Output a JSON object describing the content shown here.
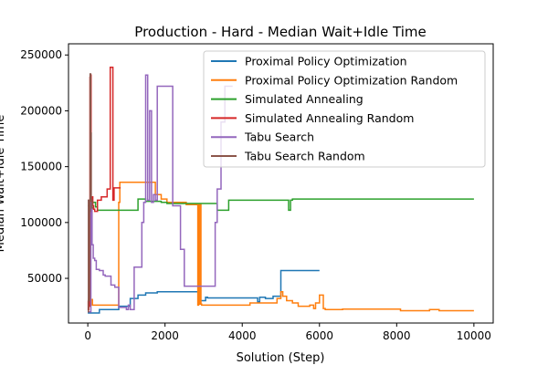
{
  "chart_data": {
    "type": "line",
    "title": "Production - Hard - Median Wait+Idle Time",
    "xlabel": "Solution (Step)",
    "ylabel": "Median Wait+Idle Time",
    "xlim": [
      -500,
      10500
    ],
    "ylim": [
      10000,
      260000
    ],
    "xticks": [
      0,
      2000,
      4000,
      6000,
      8000,
      10000
    ],
    "yticks": [
      50000,
      100000,
      150000,
      200000,
      250000
    ],
    "legend_position": "top-right",
    "series": [
      {
        "name": "Proximal Policy Optimization",
        "color": "#1f77b4",
        "x": [
          0,
          300,
          300,
          800,
          800,
          1100,
          1100,
          1300,
          1300,
          1500,
          1500,
          1800,
          1800,
          2900,
          2900,
          3050,
          3050,
          3100,
          3100,
          4400,
          4400,
          4450,
          4450,
          4600,
          4600,
          4800,
          4800,
          5000,
          5000,
          6000
        ],
        "y": [
          19000,
          19000,
          22000,
          22000,
          25000,
          25000,
          32000,
          32000,
          35000,
          35000,
          37000,
          37000,
          38000,
          38000,
          30000,
          30000,
          33000,
          33000,
          32500,
          32500,
          29000,
          29000,
          33000,
          33000,
          32000,
          32000,
          34000,
          34000,
          57000,
          57000
        ]
      },
      {
        "name": "Proximal Policy Optimization Random",
        "color": "#ff7f0e",
        "x": [
          0,
          20,
          20,
          50,
          50,
          80,
          80,
          120,
          120,
          800,
          800,
          830,
          830,
          1350,
          1350,
          1450,
          1450,
          1750,
          1750,
          1900,
          1900,
          2050,
          2050,
          2550,
          2550,
          2850,
          2850,
          2870,
          2870,
          2890,
          2890,
          2910,
          2910,
          2930,
          2930,
          2950,
          2950,
          4200,
          4200,
          4900,
          4900,
          5000,
          5000,
          5050,
          5050,
          5150,
          5150,
          5300,
          5300,
          5450,
          5450,
          5750,
          5750,
          5850,
          5850,
          5900,
          5900,
          6000,
          6000,
          6100,
          6100,
          6150,
          6150,
          6600,
          6600,
          8100,
          8100,
          8850,
          8850,
          9100,
          9100,
          10000
        ],
        "y": [
          27000,
          27000,
          32000,
          32000,
          26000,
          26000,
          31000,
          31000,
          26000,
          26000,
          118000,
          118000,
          136000,
          136000,
          136000,
          136000,
          136000,
          136000,
          125000,
          125000,
          121000,
          121000,
          118000,
          118000,
          116000,
          116000,
          26000,
          26000,
          116000,
          116000,
          27000,
          27000,
          116000,
          116000,
          27000,
          27000,
          26000,
          26000,
          28000,
          28000,
          32000,
          32000,
          38000,
          38000,
          34000,
          34000,
          30000,
          30000,
          28000,
          28000,
          25000,
          25000,
          26000,
          26000,
          23000,
          23000,
          28000,
          28000,
          35000,
          35000,
          23000,
          23000,
          22000,
          22000,
          22500,
          22500,
          21000,
          21000,
          22000,
          22000,
          21000,
          21000
        ]
      },
      {
        "name": "Simulated Annealing",
        "color": "#2ca02c",
        "x": [
          0,
          30,
          30,
          60,
          60,
          90,
          90,
          130,
          130,
          200,
          200,
          250,
          250,
          1300,
          1300,
          1400,
          1400,
          1500,
          1500,
          1900,
          1900,
          2050,
          2050,
          2850,
          2850,
          3350,
          3350,
          3650,
          3650,
          5200,
          5200,
          5250,
          5250,
          5300,
          5300,
          7850,
          7850,
          10000
        ],
        "y": [
          115000,
          115000,
          32000,
          32000,
          120000,
          120000,
          118000,
          118000,
          118000,
          118000,
          114000,
          114000,
          111000,
          111000,
          121000,
          121000,
          121000,
          121000,
          119000,
          119000,
          118000,
          118000,
          117000,
          117000,
          117000,
          117000,
          111000,
          111000,
          120000,
          120000,
          111000,
          111000,
          120000,
          120000,
          121000,
          121000,
          121000,
          121000
        ]
      },
      {
        "name": "Simulated Annealing Random",
        "color": "#d62728",
        "x": [
          0,
          10,
          10,
          25,
          25,
          40,
          40,
          55,
          55,
          75,
          75,
          85,
          85,
          95,
          95,
          110,
          110,
          130,
          130,
          150,
          150,
          180,
          180,
          250,
          250,
          350,
          350,
          400,
          400,
          500,
          500,
          580,
          580,
          600,
          600,
          650,
          650,
          680,
          680,
          850
        ],
        "y": [
          30000,
          30000,
          22000,
          22000,
          31000,
          31000,
          25000,
          25000,
          230000,
          230000,
          232000,
          232000,
          110000,
          110000,
          120000,
          120000,
          123000,
          123000,
          115000,
          115000,
          112000,
          112000,
          110000,
          110000,
          120000,
          120000,
          123000,
          123000,
          123000,
          123000,
          130000,
          130000,
          239000,
          239000,
          239000,
          239000,
          120000,
          120000,
          131000,
          131000
        ]
      },
      {
        "name": "Tabu Search",
        "color": "#9467bd",
        "x": [
          0,
          80,
          80,
          110,
          110,
          140,
          140,
          180,
          180,
          220,
          220,
          300,
          300,
          400,
          400,
          450,
          450,
          500,
          500,
          600,
          600,
          700,
          700,
          800,
          800,
          1000,
          1000,
          1050,
          1050,
          1100,
          1100,
          1200,
          1200,
          1400,
          1400,
          1450,
          1450,
          1500,
          1500,
          1550,
          1550,
          1600,
          1600,
          1650,
          1650,
          1700,
          1700,
          1750,
          1750,
          1800,
          1800,
          1850,
          1850,
          2200,
          2200,
          2400,
          2400,
          2500,
          2500,
          2800,
          2800,
          3300,
          3300,
          3350,
          3350,
          3450,
          3450,
          3550,
          3550,
          3750
        ],
        "y": [
          20000,
          20000,
          118000,
          118000,
          80000,
          80000,
          68000,
          68000,
          66000,
          66000,
          58000,
          58000,
          57000,
          57000,
          53000,
          53000,
          52000,
          52000,
          52000,
          52000,
          44000,
          44000,
          42000,
          42000,
          24000,
          24000,
          22000,
          22000,
          26000,
          26000,
          22000,
          22000,
          60000,
          60000,
          100000,
          100000,
          118000,
          118000,
          232000,
          232000,
          120000,
          120000,
          200000,
          200000,
          118000,
          118000,
          125000,
          125000,
          120000,
          120000,
          222000,
          222000,
          222000,
          222000,
          115000,
          115000,
          76000,
          76000,
          43000,
          43000,
          43000,
          43000,
          100000,
          100000,
          130000,
          130000,
          190000,
          190000,
          222000,
          222000
        ]
      },
      {
        "name": "Tabu Search Random",
        "color": "#8c564b",
        "x": [
          0,
          15,
          15,
          30,
          30,
          45,
          45,
          60,
          60,
          75,
          75,
          90,
          90,
          110,
          110,
          140
        ],
        "y": [
          20000,
          20000,
          120000,
          120000,
          30000,
          30000,
          110000,
          110000,
          233000,
          233000,
          180000,
          180000,
          120000,
          120000,
          113000,
          113000
        ]
      }
    ]
  }
}
